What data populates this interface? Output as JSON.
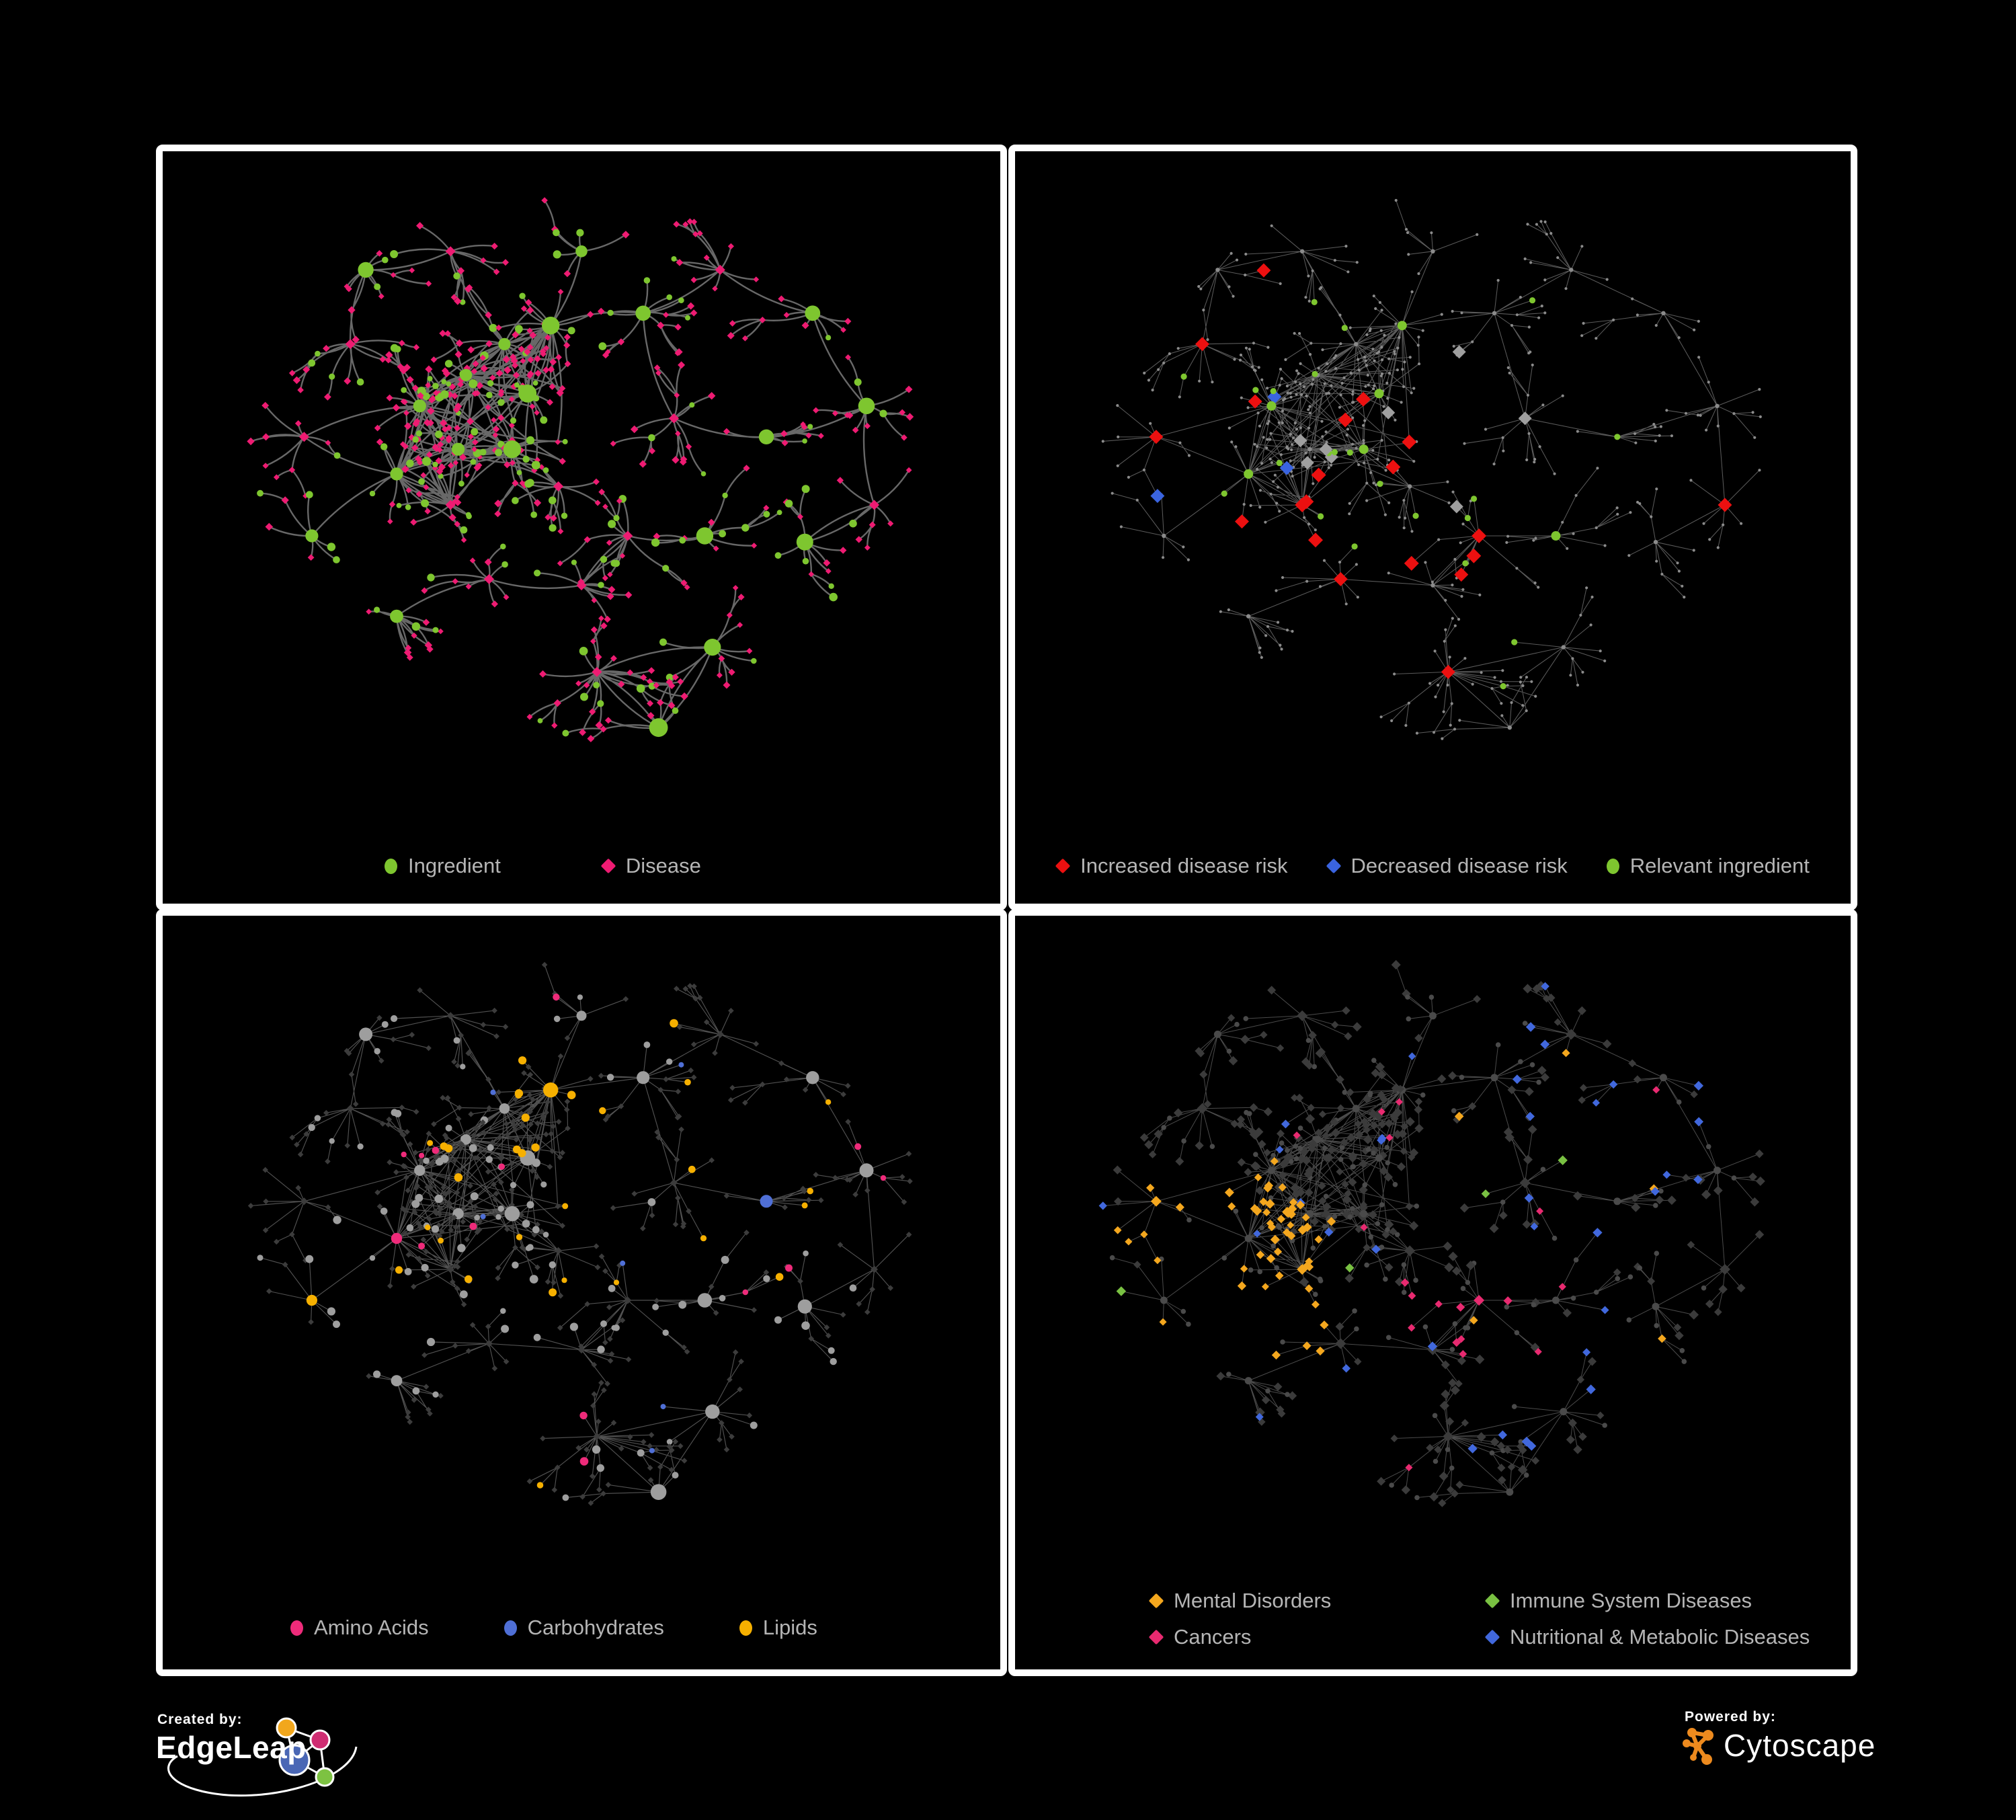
{
  "canvas": {
    "background": "#000000",
    "panel_border": "#ffffff"
  },
  "panels": [
    {
      "id": "ingredient-disease-network",
      "legend": [
        {
          "label": "Ingredient",
          "shape": "circle",
          "color": "#7ec62f"
        },
        {
          "label": "Disease",
          "shape": "diamond",
          "color": "#ee1b72"
        }
      ]
    },
    {
      "id": "disease-risk-network",
      "legend": [
        {
          "label": "Increased disease risk",
          "shape": "diamond",
          "color": "#ec1010"
        },
        {
          "label": "Decreased disease risk",
          "shape": "diamond",
          "color": "#3a64e0"
        },
        {
          "label": "Relevant ingredient",
          "shape": "circle",
          "color": "#7ec62f"
        }
      ]
    },
    {
      "id": "nutrient-class-network",
      "legend": [
        {
          "label": "Amino Acids",
          "shape": "circle",
          "color": "#ee2b7a"
        },
        {
          "label": "Carbohydrates",
          "shape": "circle",
          "color": "#4f6fd6"
        },
        {
          "label": "Lipids",
          "shape": "circle",
          "color": "#f6b000"
        }
      ]
    },
    {
      "id": "disease-class-network",
      "legend": [
        {
          "label": "Mental Disorders",
          "shape": "diamond",
          "color": "#f4a71e"
        },
        {
          "label": "Immune System Diseases",
          "shape": "diamond",
          "color": "#79c142"
        },
        {
          "label": "Cancers",
          "shape": "diamond",
          "color": "#e82a70"
        },
        {
          "label": "Nutritional & Metabolic Diseases",
          "shape": "diamond",
          "color": "#4168dd"
        }
      ]
    }
  ],
  "footer": {
    "created_by": {
      "label": "Created by:",
      "brand": "EdgeLeap"
    },
    "powered_by": {
      "label": "Powered by:",
      "brand": "Cytoscape"
    }
  },
  "brand_colors": {
    "edgeleap_orange": "#f2a71c",
    "edgeleap_pink": "#cf2d72",
    "edgeleap_blue": "#4a67b5",
    "edgeleap_green": "#7dc242",
    "cytoscape_orange": "#ed8a1e"
  },
  "network": {
    "seed": 1337,
    "core_center": [
      0.37,
      0.43
    ],
    "core_count": 42,
    "hubs": [
      [
        0.4,
        0.29,
        15
      ],
      [
        0.46,
        0.26,
        13
      ],
      [
        0.35,
        0.34,
        17
      ],
      [
        0.43,
        0.37,
        11
      ],
      [
        0.29,
        0.39,
        18
      ],
      [
        0.34,
        0.46,
        15
      ],
      [
        0.41,
        0.46,
        9
      ],
      [
        0.26,
        0.5,
        13
      ],
      [
        0.33,
        0.55,
        11
      ],
      [
        0.47,
        0.52,
        10
      ],
      [
        0.2,
        0.29,
        9
      ],
      [
        0.14,
        0.44,
        7
      ],
      [
        0.22,
        0.17,
        8
      ],
      [
        0.33,
        0.14,
        7
      ],
      [
        0.5,
        0.14,
        6
      ],
      [
        0.58,
        0.24,
        8
      ],
      [
        0.68,
        0.17,
        9
      ],
      [
        0.8,
        0.24,
        7
      ],
      [
        0.87,
        0.39,
        8
      ],
      [
        0.74,
        0.44,
        6
      ],
      [
        0.62,
        0.41,
        7
      ],
      [
        0.56,
        0.6,
        10
      ],
      [
        0.66,
        0.6,
        8
      ],
      [
        0.79,
        0.61,
        7
      ],
      [
        0.5,
        0.68,
        9
      ],
      [
        0.38,
        0.67,
        8
      ],
      [
        0.26,
        0.73,
        10
      ],
      [
        0.52,
        0.82,
        20
      ],
      [
        0.67,
        0.78,
        7
      ],
      [
        0.15,
        0.6,
        6
      ],
      [
        0.6,
        0.91,
        5
      ],
      [
        0.88,
        0.55,
        5
      ]
    ],
    "panels": {
      "p1": {
        "edge": {
          "color": "#7a7a7a",
          "width": 2.4,
          "curved": true
        },
        "ingredient": "#7ec62f",
        "disease": "#ee1b72"
      },
      "p2": {
        "edge": {
          "color": "#6a6a6a",
          "width": 1.05
        },
        "dim": "#8b8b8b",
        "increased": "#ec1010",
        "decreased": "#3a64e0",
        "neutral": "#9f9f9f",
        "ingredient": "#7ec62f"
      },
      "p3": {
        "edge": {
          "color": "#5f5f5f",
          "width": 1.15
        },
        "base": "#9e9e9e",
        "disease": "#3c3c3c",
        "amino": "#ee2b7a",
        "carb": "#4f6fd6",
        "lipid": "#f6b000"
      },
      "p4": {
        "edge": {
          "color": "#585858",
          "width": 1.0
        },
        "ingredient": "#4a4a4a",
        "disease": "#3b3b3b",
        "mental": "#f4a71e",
        "immune": "#79c142",
        "cancer": "#e82a70",
        "nutri": "#4168dd"
      }
    }
  }
}
